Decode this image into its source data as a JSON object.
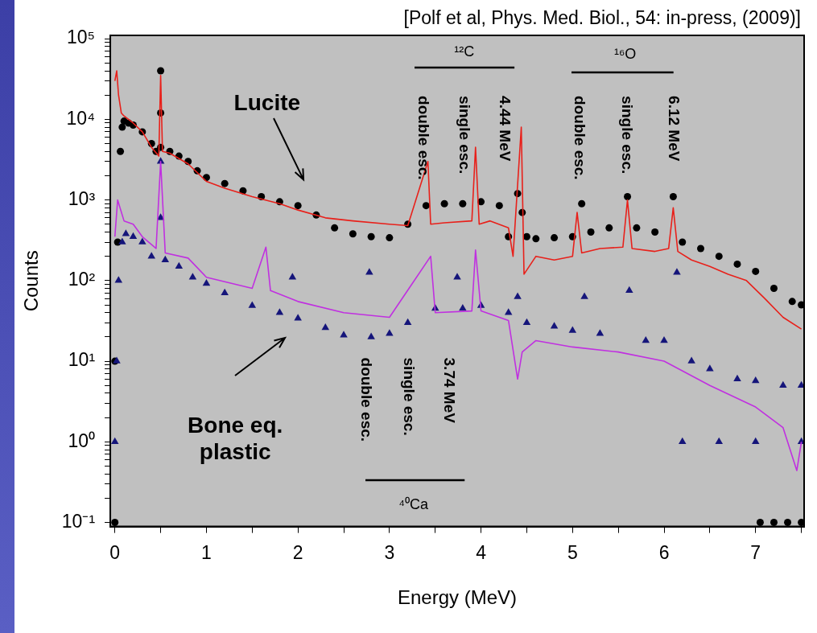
{
  "chart_data": {
    "type": "scatter",
    "xlabel": "Energy (MeV)",
    "ylabel": "Counts",
    "log": "y",
    "grid": false,
    "legend": false,
    "xlim": [
      -0.05,
      7.53
    ],
    "ylim": [
      0.089,
      110000
    ],
    "xticks": [
      0,
      {
        "value": 0.5,
        "label": null
      },
      1,
      {
        "value": 1.5,
        "label": null
      },
      2,
      {
        "value": 2.5,
        "label": null
      },
      3,
      {
        "value": 3.5,
        "label": null
      },
      4,
      {
        "value": 4.5,
        "label": null
      },
      5,
      {
        "value": 5.5,
        "label": null
      },
      6,
      {
        "value": 6.5,
        "label": null
      },
      7,
      {
        "value": 7.5,
        "label": null
      }
    ],
    "yticks": [
      {
        "value": 0.1,
        "label": "10⁻¹"
      },
      {
        "value": 0.2,
        "label": null
      },
      {
        "value": 0.3,
        "label": null
      },
      {
        "value": 0.4,
        "label": null
      },
      {
        "value": 0.5,
        "label": null
      },
      {
        "value": 0.6,
        "label": null
      },
      {
        "value": 0.7,
        "label": null
      },
      {
        "value": 0.8,
        "label": null
      },
      {
        "value": 0.9,
        "label": null
      },
      {
        "value": 1,
        "label": "10⁰"
      },
      {
        "value": 2,
        "label": null
      },
      {
        "value": 3,
        "label": null
      },
      {
        "value": 4,
        "label": null
      },
      {
        "value": 5,
        "label": null
      },
      {
        "value": 6,
        "label": null
      },
      {
        "value": 7,
        "label": null
      },
      {
        "value": 8,
        "label": null
      },
      {
        "value": 9,
        "label": null
      },
      {
        "value": 10,
        "label": "10¹"
      },
      {
        "value": 20,
        "label": null
      },
      {
        "value": 30,
        "label": null
      },
      {
        "value": 40,
        "label": null
      },
      {
        "value": 50,
        "label": null
      },
      {
        "value": 60,
        "label": null
      },
      {
        "value": 70,
        "label": null
      },
      {
        "value": 80,
        "label": null
      },
      {
        "value": 90,
        "label": null
      },
      {
        "value": 100,
        "label": "10²"
      },
      {
        "value": 200,
        "label": null
      },
      {
        "value": 300,
        "label": null
      },
      {
        "value": 400,
        "label": null
      },
      {
        "value": 500,
        "label": null
      },
      {
        "value": 600,
        "label": null
      },
      {
        "value": 700,
        "label": null
      },
      {
        "value": 800,
        "label": null
      },
      {
        "value": 900,
        "label": null
      },
      {
        "value": 1000,
        "label": "10³"
      },
      {
        "value": 2000,
        "label": null
      },
      {
        "value": 3000,
        "label": null
      },
      {
        "value": 4000,
        "label": null
      },
      {
        "value": 5000,
        "label": null
      },
      {
        "value": 6000,
        "label": null
      },
      {
        "value": 7000,
        "label": null
      },
      {
        "value": 8000,
        "label": null
      },
      {
        "value": 9000,
        "label": null
      },
      {
        "value": 10000,
        "label": "10⁴"
      },
      {
        "value": 20000,
        "label": null
      },
      {
        "value": 30000,
        "label": null
      },
      {
        "value": 40000,
        "label": null
      },
      {
        "value": 50000,
        "label": null
      },
      {
        "value": 60000,
        "label": null
      },
      {
        "value": 70000,
        "label": null
      },
      {
        "value": 80000,
        "label": null
      },
      {
        "value": 90000,
        "label": null
      },
      {
        "value": 100000,
        "label": "10⁵"
      }
    ],
    "series": [
      {
        "type": "scatter",
        "marker": "circle",
        "color": "#000000",
        "x": [
          0,
          0,
          0.03,
          0.06,
          0.08,
          0.1,
          0.15,
          0.2,
          0.3,
          0.4,
          0.45,
          0.5,
          0.5,
          0.5,
          0.6,
          0.7,
          0.8,
          0.9,
          1.0,
          1.2,
          1.4,
          1.6,
          1.8,
          2.0,
          2.2,
          2.4,
          2.6,
          2.8,
          3.0,
          3.2,
          3.4,
          3.6,
          3.8,
          4.0,
          4.2,
          4.3,
          4.4,
          4.45,
          4.5,
          4.6,
          4.8,
          5.0,
          5.1,
          5.2,
          5.4,
          5.6,
          5.7,
          5.9,
          6.1,
          6.2,
          6.4,
          6.6,
          6.8,
          7.0,
          7.2,
          7.4,
          7.5,
          7.05,
          7.2,
          7.35,
          7.5
        ],
        "values": [
          0.1,
          10,
          300,
          4000,
          8000,
          9500,
          9000,
          8500,
          7000,
          5000,
          4000,
          40000,
          12000,
          4500,
          4000,
          3500,
          3000,
          2300,
          1900,
          1600,
          1300,
          1100,
          950,
          850,
          650,
          450,
          380,
          350,
          340,
          500,
          850,
          900,
          900,
          950,
          850,
          350,
          1200,
          700,
          350,
          330,
          340,
          350,
          900,
          400,
          450,
          1100,
          450,
          400,
          1100,
          300,
          250,
          200,
          160,
          130,
          80,
          55,
          50,
          0.1,
          0.1,
          0.1,
          0.1
        ]
      },
      {
        "type": "scatter",
        "marker": "triangle",
        "color": "#15157a",
        "x": [
          0,
          0.02,
          0.04,
          0.08,
          0.12,
          0.2,
          0.3,
          0.4,
          0.5,
          0.5,
          0.55,
          0.7,
          0.85,
          1.0,
          1.2,
          1.5,
          1.8,
          1.94,
          2.0,
          2.3,
          2.5,
          2.78,
          2.8,
          3.0,
          3.2,
          3.5,
          3.74,
          3.8,
          4.0,
          4.3,
          4.4,
          4.5,
          4.8,
          5.0,
          5.13,
          5.3,
          5.62,
          5.8,
          6.0,
          6.14,
          6.3,
          6.5,
          6.8,
          7.0,
          7.3,
          7.5,
          6.2,
          6.6,
          7.0,
          7.5
        ],
        "values": [
          1,
          10,
          100,
          300,
          380,
          350,
          300,
          200,
          3000,
          600,
          180,
          150,
          110,
          92,
          70,
          49,
          40,
          110,
          34,
          26,
          21,
          126,
          20,
          22,
          30,
          45,
          110,
          45,
          49,
          40,
          63,
          30,
          27,
          24,
          63,
          22,
          75,
          18,
          18,
          126,
          10,
          8,
          6,
          5.7,
          5,
          5,
          1,
          1,
          1,
          1
        ]
      },
      {
        "type": "line",
        "marker": "none",
        "color": "#e8201a",
        "x": [
          0,
          0.02,
          0.04,
          0.07,
          0.1,
          0.2,
          0.3,
          0.4,
          0.48,
          0.5,
          0.52,
          0.6,
          0.8,
          1.0,
          1.2,
          1.5,
          1.8,
          2.0,
          2.3,
          2.6,
          3.0,
          3.2,
          3.42,
          3.45,
          3.6,
          3.9,
          3.94,
          3.98,
          4.1,
          4.3,
          4.35,
          4.44,
          4.47,
          4.6,
          4.8,
          5.0,
          5.05,
          5.1,
          5.3,
          5.55,
          5.6,
          5.65,
          5.9,
          6.05,
          6.1,
          6.15,
          6.3,
          6.5,
          6.7,
          6.9,
          7.1,
          7.3,
          7.5
        ],
        "values": [
          30000,
          40000,
          20000,
          12000,
          11000,
          9000,
          7000,
          4500,
          3500,
          35000,
          4000,
          3800,
          2800,
          1700,
          1400,
          1100,
          900,
          750,
          600,
          550,
          500,
          480,
          3000,
          500,
          520,
          550,
          4500,
          500,
          550,
          450,
          200,
          8000,
          120,
          200,
          180,
          200,
          700,
          220,
          250,
          260,
          1000,
          250,
          230,
          250,
          800,
          230,
          180,
          150,
          120,
          100,
          60,
          35,
          25
        ]
      },
      {
        "type": "line",
        "marker": "none",
        "color": "#c030e0",
        "x": [
          0,
          0.03,
          0.1,
          0.2,
          0.3,
          0.45,
          0.5,
          0.55,
          0.8,
          1.0,
          1.5,
          1.65,
          1.7,
          2.0,
          2.5,
          3.0,
          3.45,
          3.5,
          3.9,
          3.94,
          4.0,
          4.3,
          4.4,
          4.45,
          4.6,
          5.0,
          5.5,
          6.0,
          6.5,
          7.0,
          7.3,
          7.45,
          7.5
        ],
        "values": [
          350,
          1000,
          550,
          500,
          350,
          250,
          3000,
          220,
          190,
          110,
          80,
          260,
          75,
          55,
          40,
          35,
          200,
          40,
          42,
          240,
          42,
          32,
          6,
          13,
          18,
          15,
          13,
          10,
          5,
          2.7,
          1.5,
          0.44,
          1
        ]
      }
    ],
    "annotations": [
      "[Polf et al, Phys. Med. Biol., 54: in-press, (2009)]",
      "Lucite",
      "Bone eq. plastic",
      "¹²C",
      "double esc.",
      "single esc.",
      "4.44 MeV",
      "¹⁶O",
      "double esc.",
      "single esc.",
      "6.12 MeV",
      "⁴⁰Ca",
      "double esc.",
      "single esc.",
      "3.74 MeV"
    ]
  }
}
